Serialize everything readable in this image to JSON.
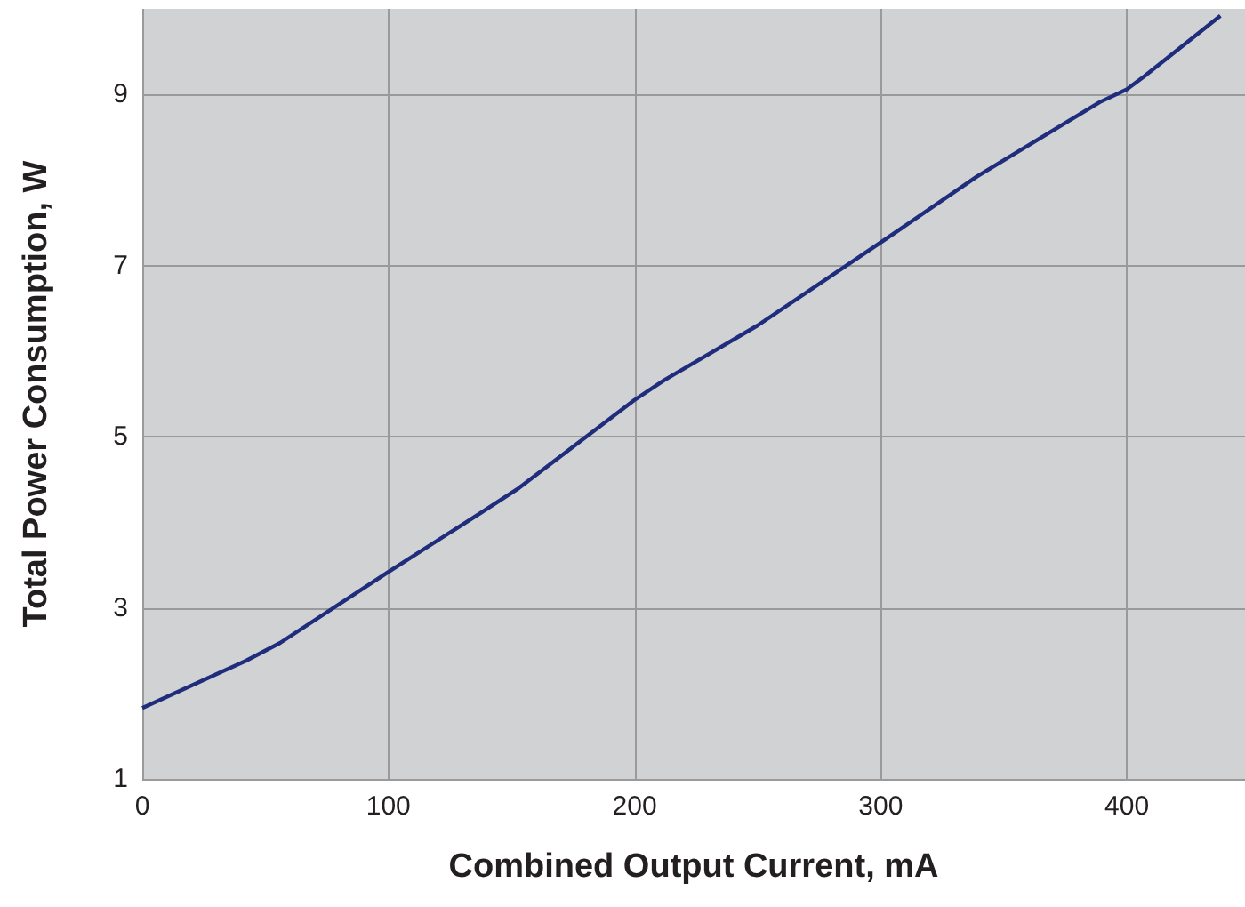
{
  "chart_data": {
    "type": "line",
    "xlabel": "Combined Output Current, mA",
    "ylabel": "Total Power Consumption, W",
    "series": [
      {
        "color": "#1f2d7c",
        "x": [
          0,
          42,
          56,
          100,
          138,
          153,
          200,
          212,
          250,
          300,
          339,
          389,
          400,
          407,
          438
        ],
        "values": [
          1.83,
          2.38,
          2.59,
          3.42,
          4.12,
          4.4,
          5.43,
          5.66,
          6.3,
          7.27,
          8.04,
          8.91,
          9.06,
          9.21,
          9.92
        ]
      }
    ],
    "xlim": [
      0,
      448
    ],
    "xticks": [
      0,
      100,
      200,
      300,
      400
    ],
    "ylim": [
      1,
      10
    ],
    "yticks": [
      1,
      3,
      5,
      7,
      9
    ],
    "grid": true,
    "marker": "none",
    "line_style": "solid"
  }
}
